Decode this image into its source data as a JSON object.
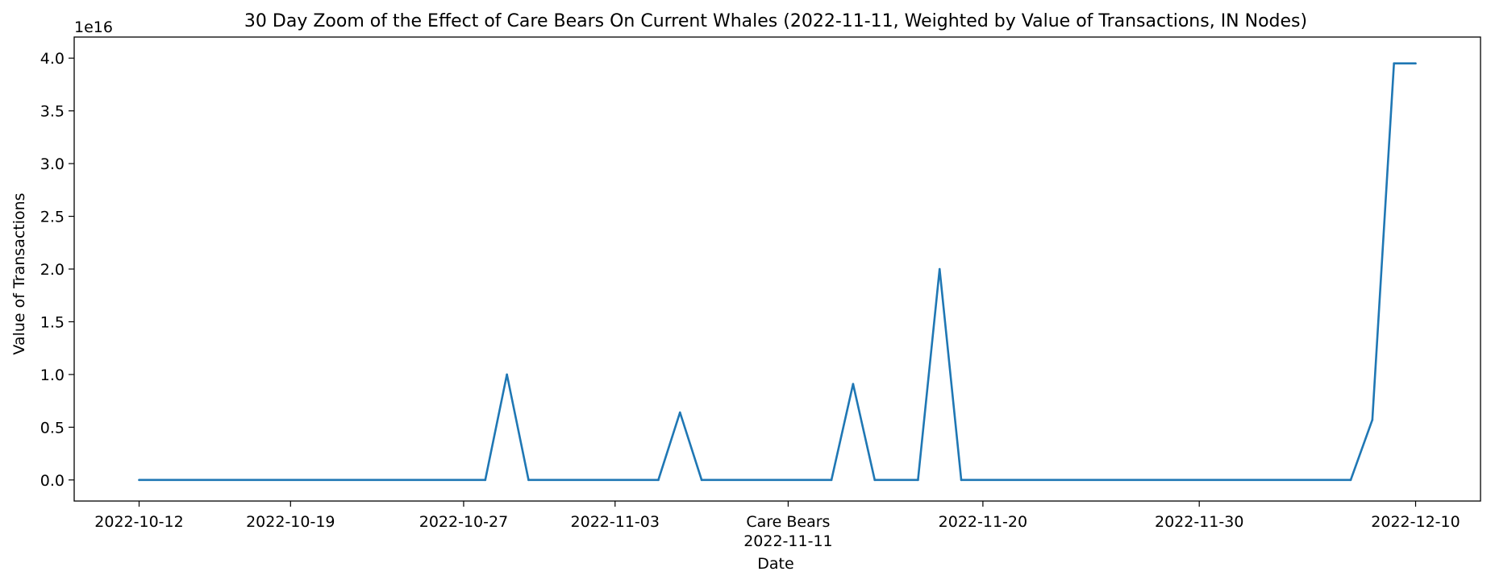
{
  "chart_data": {
    "type": "line",
    "title": "30 Day Zoom of the Effect of Care Bears On Current Whales (2022-11-11, Weighted by Value of Transactions, IN Nodes)",
    "xlabel": "Date",
    "ylabel": "Value of Transactions",
    "y_multiplier_label": "1e16",
    "xlim": [
      "2022-10-09",
      "2022-12-13"
    ],
    "ylim": [
      -0.2,
      4.2
    ],
    "y_ticks": [
      0.0,
      0.5,
      1.0,
      1.5,
      2.0,
      2.5,
      3.0,
      3.5,
      4.0
    ],
    "y_tick_labels": [
      "0.0",
      "0.5",
      "1.0",
      "1.5",
      "2.0",
      "2.5",
      "3.0",
      "3.5",
      "4.0"
    ],
    "x_ticks": [
      {
        "date": "2022-10-12",
        "label": "2022-10-12"
      },
      {
        "date": "2022-10-19",
        "label": "2022-10-19"
      },
      {
        "date": "2022-10-27",
        "label": "2022-10-27"
      },
      {
        "date": "2022-11-03",
        "label": "2022-11-03"
      },
      {
        "date": "2022-11-11",
        "label": "Care Bears",
        "sublabel": "2022-11-11"
      },
      {
        "date": "2022-11-20",
        "label": "2022-11-20"
      },
      {
        "date": "2022-11-30",
        "label": "2022-11-30"
      },
      {
        "date": "2022-12-10",
        "label": "2022-12-10"
      }
    ],
    "grid": false,
    "series": [
      {
        "color": "#1f77b4",
        "points": [
          {
            "x": "2022-10-12",
            "y": 0.0
          },
          {
            "x": "2022-10-28",
            "y": 0.0
          },
          {
            "x": "2022-10-29",
            "y": 1.0
          },
          {
            "x": "2022-10-30",
            "y": 0.0
          },
          {
            "x": "2022-11-05",
            "y": 0.0
          },
          {
            "x": "2022-11-06",
            "y": 0.64
          },
          {
            "x": "2022-11-07",
            "y": 0.0
          },
          {
            "x": "2022-11-13",
            "y": 0.0
          },
          {
            "x": "2022-11-14",
            "y": 0.91
          },
          {
            "x": "2022-11-15",
            "y": 0.0
          },
          {
            "x": "2022-11-17",
            "y": 0.0
          },
          {
            "x": "2022-11-18",
            "y": 2.0
          },
          {
            "x": "2022-11-19",
            "y": 0.0
          },
          {
            "x": "2022-12-07",
            "y": 0.0
          },
          {
            "x": "2022-12-08",
            "y": 0.57
          },
          {
            "x": "2022-12-09",
            "y": 3.95
          },
          {
            "x": "2022-12-10",
            "y": 3.95
          }
        ]
      }
    ]
  }
}
